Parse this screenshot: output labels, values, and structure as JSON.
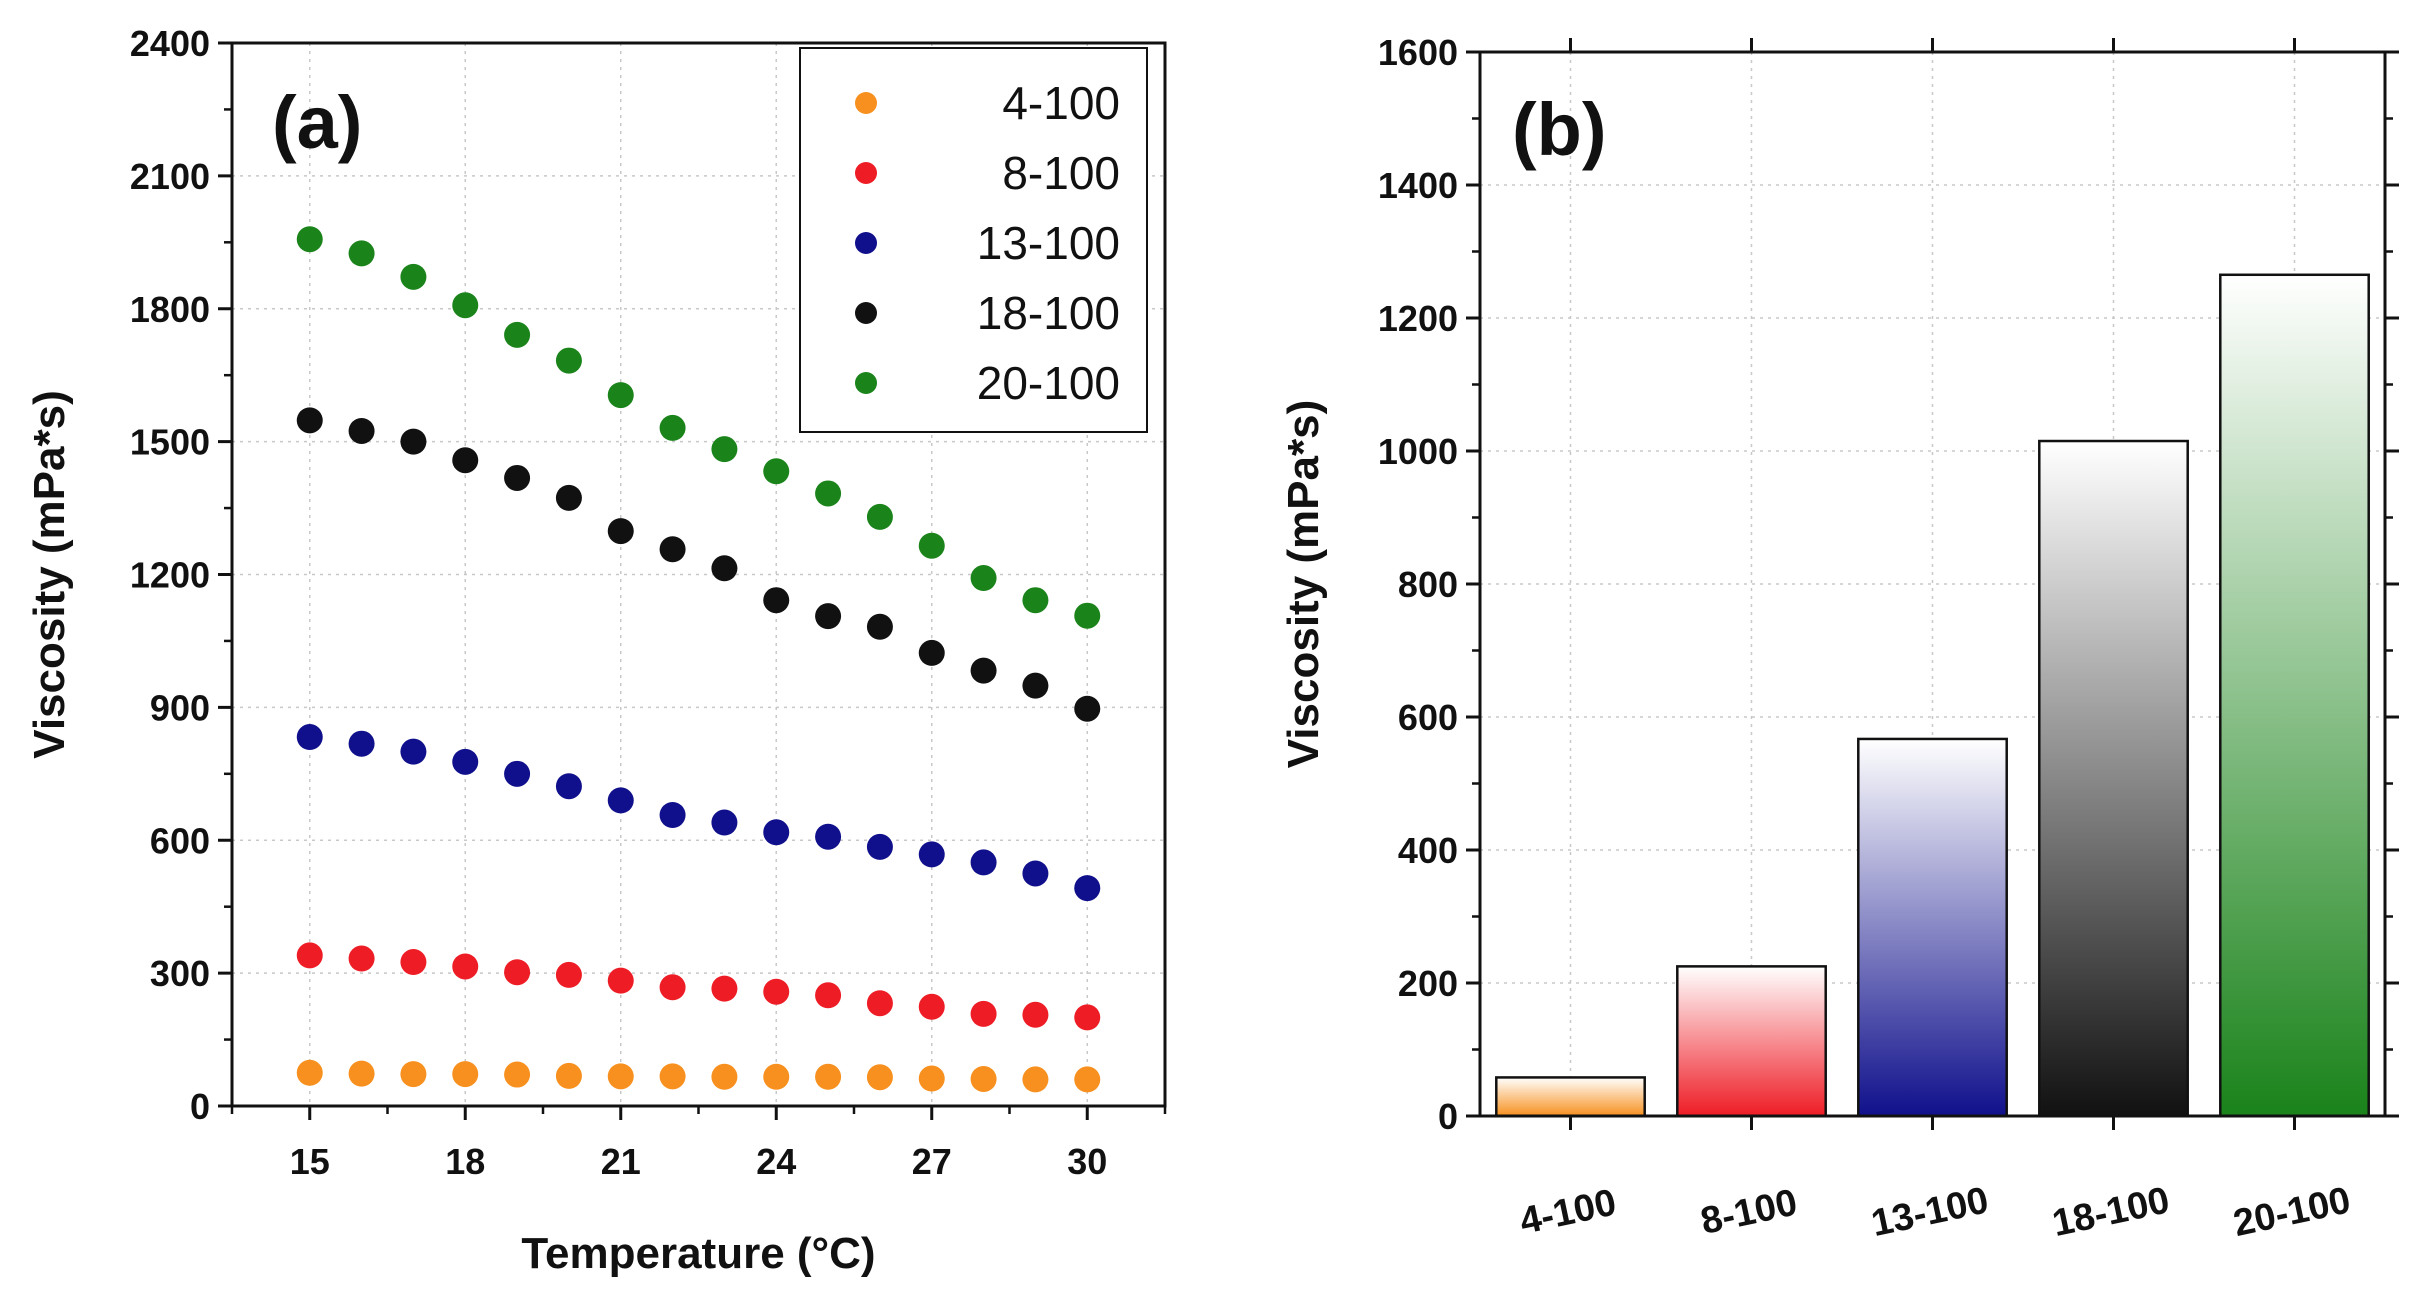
{
  "chart_data": [
    {
      "type": "scatter",
      "panel_label": "(a)",
      "xlabel": "Temperature (°C)",
      "ylabel": "Viscosity (mPa*s)",
      "xlim": [
        13.5,
        31.5
      ],
      "ylim": [
        0,
        2400
      ],
      "xticks": [
        15,
        18,
        21,
        24,
        27,
        30
      ],
      "xtick_labels": [
        "15",
        "18",
        "21",
        "24",
        "27",
        "30"
      ],
      "yticks": [
        0,
        300,
        600,
        900,
        1200,
        1500,
        1800,
        2100,
        2400
      ],
      "ytick_labels": [
        "0",
        "300",
        "600",
        "900",
        "1200",
        "1500",
        "1800",
        "2100",
        "2400"
      ],
      "grid": true,
      "legend_position": "top-right",
      "x": [
        15,
        16,
        17,
        18,
        19,
        20,
        21,
        22,
        23,
        24,
        25,
        26,
        27,
        28,
        29,
        30
      ],
      "series": [
        {
          "name": "4-100",
          "color": "#f7901e",
          "values": [
            75,
            73,
            72,
            72,
            71,
            68,
            67,
            67,
            66,
            66,
            66,
            65,
            62,
            61,
            60,
            60
          ]
        },
        {
          "name": "8-100",
          "color": "#ee1c25",
          "values": [
            340,
            333,
            325,
            315,
            302,
            296,
            283,
            268,
            265,
            258,
            250,
            232,
            224,
            208,
            206,
            200
          ]
        },
        {
          "name": "13-100",
          "color": "#10108c",
          "values": [
            833,
            818,
            800,
            777,
            750,
            722,
            690,
            657,
            640,
            618,
            608,
            585,
            568,
            550,
            525,
            492
          ]
        },
        {
          "name": "18-100",
          "color": "#111111",
          "values": [
            1548,
            1524,
            1500,
            1458,
            1418,
            1373,
            1298,
            1257,
            1214,
            1142,
            1106,
            1082,
            1023,
            983,
            949,
            897
          ]
        },
        {
          "name": "20-100",
          "color": "#1a831a",
          "values": [
            1957,
            1925,
            1872,
            1808,
            1741,
            1683,
            1605,
            1531,
            1483,
            1433,
            1383,
            1330,
            1265,
            1192,
            1142,
            1107
          ]
        }
      ]
    },
    {
      "type": "bar",
      "panel_label": "(b)",
      "xlabel": "",
      "ylabel": "Viscosity (mPa*s)",
      "ylim": [
        0,
        1600
      ],
      "yticks": [
        0,
        200,
        400,
        600,
        800,
        1000,
        1200,
        1400,
        1600
      ],
      "ytick_labels": [
        "0",
        "200",
        "400",
        "600",
        "800",
        "1000",
        "1200",
        "1400",
        "1600"
      ],
      "grid": true,
      "categories": [
        "4-100",
        "8-100",
        "13-100",
        "18-100",
        "20-100"
      ],
      "values": [
        58,
        225,
        567,
        1015,
        1265
      ],
      "colors": [
        "#f7901e",
        "#ee1c25",
        "#10108c",
        "#111111",
        "#1a831a"
      ]
    }
  ]
}
